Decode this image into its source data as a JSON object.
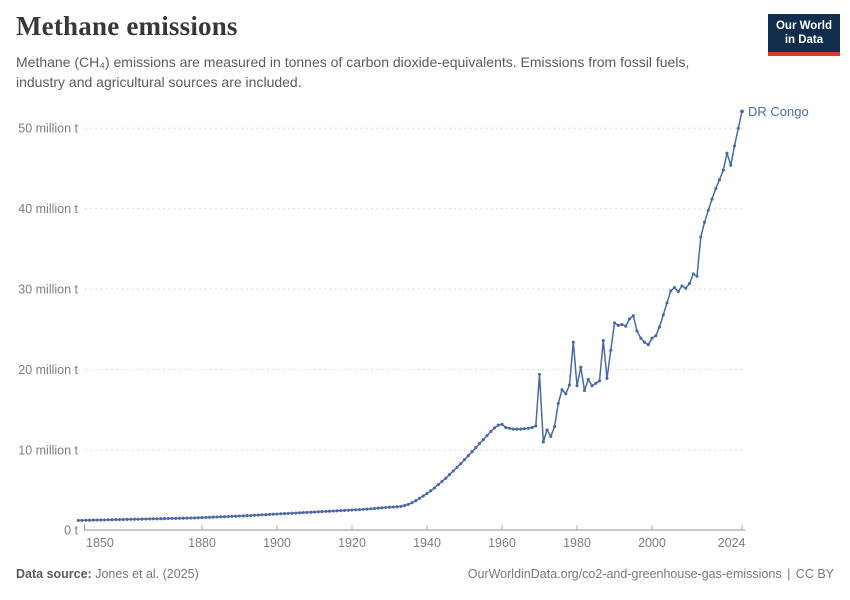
{
  "header": {
    "title": "Methane emissions",
    "subtitle": "Methane (CH₄) emissions are measured in tonnes of carbon dioxide-equivalents. Emissions from fossil fuels, industry and agricultural sources are included.",
    "logo": {
      "line1": "Our World",
      "line2": "in Data",
      "bg_color": "#102d4e",
      "accent_color": "#d93a2b"
    }
  },
  "chart_data": {
    "type": "line",
    "title": "Methane emissions",
    "entity": "DR Congo",
    "end_label": "DR Congo",
    "legend_position": "end-of-line",
    "unit": "tonnes of carbon dioxide-equivalents",
    "x_axis": {
      "range": [
        1847,
        2024
      ],
      "tick_labels": [
        "1850",
        "1880",
        "1900",
        "1920",
        "1940",
        "1960",
        "1980",
        "2000",
        "2024"
      ]
    },
    "y_axis": {
      "range": [
        0,
        52.1
      ],
      "gridlines": "dashed",
      "ticks": [
        {
          "value": 0,
          "label": "0 t"
        },
        {
          "value": 10,
          "label": "10 million t"
        },
        {
          "value": 20,
          "label": "20 million t"
        },
        {
          "value": 30,
          "label": "30 million t"
        },
        {
          "value": 40,
          "label": "40 million t"
        },
        {
          "value": 50,
          "label": "50 million t"
        }
      ]
    },
    "series": [
      {
        "name": "DR Congo",
        "color": "#4a69a5",
        "start_year": 1847,
        "end_year": 2024,
        "interval": "annual",
        "values_million_tonnes": [
          1.25,
          1.26,
          1.27,
          1.28,
          1.29,
          1.3,
          1.31,
          1.32,
          1.33,
          1.34,
          1.35,
          1.36,
          1.37,
          1.38,
          1.39,
          1.4,
          1.41,
          1.42,
          1.43,
          1.44,
          1.45,
          1.46,
          1.47,
          1.48,
          1.49,
          1.5,
          1.51,
          1.52,
          1.53,
          1.54,
          1.55,
          1.57,
          1.58,
          1.6,
          1.62,
          1.64,
          1.66,
          1.68,
          1.7,
          1.72,
          1.74,
          1.76,
          1.78,
          1.8,
          1.82,
          1.85,
          1.87,
          1.9,
          1.92,
          1.95,
          1.97,
          2.0,
          2.02,
          2.05,
          2.07,
          2.1,
          2.12,
          2.15,
          2.17,
          2.2,
          2.22,
          2.25,
          2.27,
          2.3,
          2.32,
          2.35,
          2.37,
          2.4,
          2.42,
          2.45,
          2.47,
          2.5,
          2.52,
          2.55,
          2.57,
          2.6,
          2.63,
          2.66,
          2.7,
          2.74,
          2.78,
          2.82,
          2.86,
          2.9,
          2.92,
          2.95,
          3.0,
          3.1,
          3.25,
          3.45,
          3.7,
          4.0,
          4.3,
          4.6,
          4.95,
          5.3,
          5.7,
          6.1,
          6.5,
          6.95,
          7.4,
          7.85,
          8.3,
          8.8,
          9.3,
          9.8,
          10.3,
          10.8,
          11.3,
          11.8,
          12.3,
          12.75,
          13.1,
          13.2,
          12.8,
          12.7,
          12.6,
          12.6,
          12.6,
          12.65,
          12.7,
          12.8,
          13.0,
          19.4,
          11.0,
          12.5,
          11.7,
          12.9,
          15.8,
          17.5,
          17.0,
          18.1,
          23.4,
          18.0,
          20.3,
          17.4,
          18.8,
          18.0,
          18.3,
          18.6,
          23.6,
          18.9,
          22.4,
          25.8,
          25.5,
          25.6,
          25.4,
          26.3,
          26.7,
          24.8,
          23.9,
          23.4,
          23.1,
          23.9,
          24.2,
          25.3,
          26.8,
          28.3,
          29.8,
          30.2,
          29.7,
          30.4,
          30.1,
          30.7,
          31.9,
          31.6,
          36.5,
          38.3,
          39.8,
          41.2,
          42.5,
          43.6,
          44.8,
          46.9,
          45.4,
          47.8,
          50.0,
          52.1
        ]
      }
    ]
  },
  "footer": {
    "source_label": "Data source:",
    "source_value": "Jones et al. (2025)",
    "url": "OurWorldinData.org/co2-and-greenhouse-gas-emissions",
    "separator": "|",
    "license": "CC BY"
  },
  "colors": {
    "line": "#4a69a5",
    "end_label": "#4d6ba8",
    "grid": "#d9d9d9",
    "axis": "#8f8f8f",
    "muted_text": "#7e7e7e"
  }
}
